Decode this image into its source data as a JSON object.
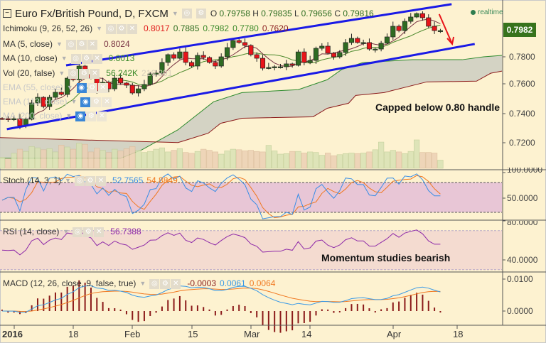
{
  "header": {
    "collapse_icon": "minus-box-icon",
    "title": "Euro Fx/British Pound, D, FXCM",
    "o_label": "O",
    "o_value": "0.79758",
    "h_label": "H",
    "h_value": "0.79835",
    "l_label": "L",
    "l_value": "0.79656",
    "c_label": "C",
    "c_value": "0.79816",
    "realtime": "realtime"
  },
  "legends": {
    "ichimoku": {
      "label": "Ichimoku (9, 26, 52, 26)",
      "values": [
        "0.8017",
        "0.7885",
        "0.7982",
        "0.7780",
        "0.7620"
      ]
    },
    "ma5": {
      "label": "MA (5, close)",
      "value": "0.8024"
    },
    "ma10": {
      "label": "MA (10, close)",
      "value": "0.8013"
    },
    "vol": {
      "label": "Vol (20, false)",
      "value": "56.242K",
      "value2": "216.291"
    },
    "ema55": {
      "label": "EMA (55, close)"
    },
    "ema113": {
      "label": "EMA (113, close)"
    },
    "ma200": {
      "label": "MA (200, close)"
    },
    "stoch": {
      "label": "Stoch (14, 3, 1)",
      "k": "52.7565",
      "d": "54.8849"
    },
    "rsi": {
      "label": "RSI (14, close)",
      "value": "56.7388"
    },
    "macd": {
      "label": "MACD (12, 26, close, 9, false, true)",
      "hist": "-0.0003",
      "macd": "0.0061",
      "signal": "0.0064"
    }
  },
  "annotations": {
    "main": "Capped below 0.80 handle",
    "momentum": "Momentum studies bearish"
  },
  "price_axis": {
    "current": "0.7982",
    "main_ticks": [
      "0.7800",
      "0.7600",
      "0.7400",
      "0.7200"
    ],
    "stoch_ticks": [
      "100.0000",
      "50.0000"
    ],
    "rsi_ticks": [
      "80.0000",
      "40.0000"
    ],
    "macd_ticks": [
      "0.0100",
      "0.0000"
    ]
  },
  "date_axis": [
    "2016",
    "18",
    "Feb",
    "15",
    "Mar",
    "14",
    "Apr",
    "18"
  ],
  "colors": {
    "up": "#2f6b22",
    "down": "#e8141a",
    "ma5": "#7a3545",
    "ma10": "#4e8a2e",
    "span_a": "#2e8b2e",
    "span_b": "#8b1a1a",
    "cloud": "#cfcfc2",
    "trend": "#1a1ae6",
    "arrow": "#e8141a",
    "stoch_k": "#3a8ee6",
    "stoch_d": "#f07820",
    "rsi": "#8e2aa8",
    "macd": "#3a9ae6",
    "signal": "#f07820",
    "hist": "#8b1a1a",
    "price_tag": "#37731c"
  },
  "chart_data": {
    "type": "candlestick",
    "symbol": "EUR/GBP",
    "timeframe": "D",
    "ylim": [
      0.71,
      0.82
    ],
    "closes": [
      0.7371,
      0.7367,
      0.7371,
      0.7322,
      0.7367,
      0.748,
      0.7519,
      0.7455,
      0.7519,
      0.7554,
      0.7539,
      0.7652,
      0.7642,
      0.7736,
      0.7677,
      0.7652,
      0.7564,
      0.7623,
      0.7578,
      0.7652,
      0.7618,
      0.7603,
      0.7549,
      0.7578,
      0.7608,
      0.7682,
      0.7687,
      0.7761,
      0.7815,
      0.779,
      0.7834,
      0.7761,
      0.7736,
      0.781,
      0.7795,
      0.7761,
      0.7736,
      0.78,
      0.7864,
      0.7913,
      0.7899,
      0.7879,
      0.7815,
      0.779,
      0.7721,
      0.7726,
      0.7731,
      0.7731,
      0.7751,
      0.7741,
      0.7834,
      0.7761,
      0.7775,
      0.7859,
      0.7874,
      0.7825,
      0.78,
      0.783,
      0.7899,
      0.7928,
      0.7899,
      0.7899,
      0.7854,
      0.7854,
      0.7894,
      0.7938,
      0.8012,
      0.7982,
      0.8046,
      0.8076,
      0.81,
      0.8071,
      0.8012,
      0.7982,
      0.7982
    ],
    "volumes_k": [
      40,
      35,
      55,
      70,
      62,
      80,
      75,
      68,
      72,
      60,
      85,
      78,
      70,
      92,
      88,
      60,
      74,
      66,
      58,
      70,
      64,
      72,
      80,
      66,
      58,
      62,
      70,
      75,
      60,
      66,
      72,
      58,
      55,
      62,
      70,
      66,
      60,
      52,
      64,
      70,
      68,
      64,
      66,
      62,
      60,
      84,
      64,
      52,
      54,
      62,
      62,
      56,
      60,
      58,
      48,
      56,
      46,
      50,
      54,
      56,
      54,
      56,
      60,
      68,
      96,
      60,
      66,
      60,
      54,
      62,
      104,
      58,
      58,
      56,
      30
    ],
    "ichimoku_span_a": [
      [
        -0.4,
        0.7096
      ],
      [
        20,
        0.7096
      ],
      [
        23.6,
        0.7155
      ],
      [
        29.7,
        0.7294
      ],
      [
        35.7,
        0.7488
      ],
      [
        40.5,
        0.7552
      ],
      [
        50,
        0.7572
      ],
      [
        54.9,
        0.7641
      ],
      [
        57.3,
        0.7711
      ],
      [
        60.9,
        0.776
      ],
      [
        69.3,
        0.778
      ],
      [
        77.7,
        0.778
      ],
      [
        81.3,
        0.78
      ],
      [
        84.4,
        0.781
      ]
    ],
    "ichimoku_span_b": [
      [
        -0.4,
        0.724
      ],
      [
        29.7,
        0.7205
      ],
      [
        34.8,
        0.727
      ],
      [
        36.9,
        0.7339
      ],
      [
        40.5,
        0.7374
      ],
      [
        52.5,
        0.7384
      ],
      [
        54.9,
        0.7443
      ],
      [
        58.5,
        0.7478
      ],
      [
        59.7,
        0.7532
      ],
      [
        64.5,
        0.7552
      ],
      [
        71.7,
        0.7626
      ],
      [
        80.1,
        0.7631
      ],
      [
        82.5,
        0.7686
      ],
      [
        84.4,
        0.7701
      ]
    ],
    "trendlines": [
      {
        "name": "channel-upper",
        "from": [
          10.8,
          0.7741
        ],
        "to": [
          75.9,
          0.8165
        ]
      },
      {
        "name": "channel-lower",
        "from": [
          0.8,
          0.7298
        ],
        "to": [
          79.8,
          0.7889
        ]
      }
    ],
    "arrow": {
      "from": [
        73.8,
        0.8096
      ],
      "to": [
        76,
        0.7889
      ]
    },
    "stoch_bands": [
      80,
      20
    ],
    "rsi_bands": [
      70,
      30
    ]
  }
}
